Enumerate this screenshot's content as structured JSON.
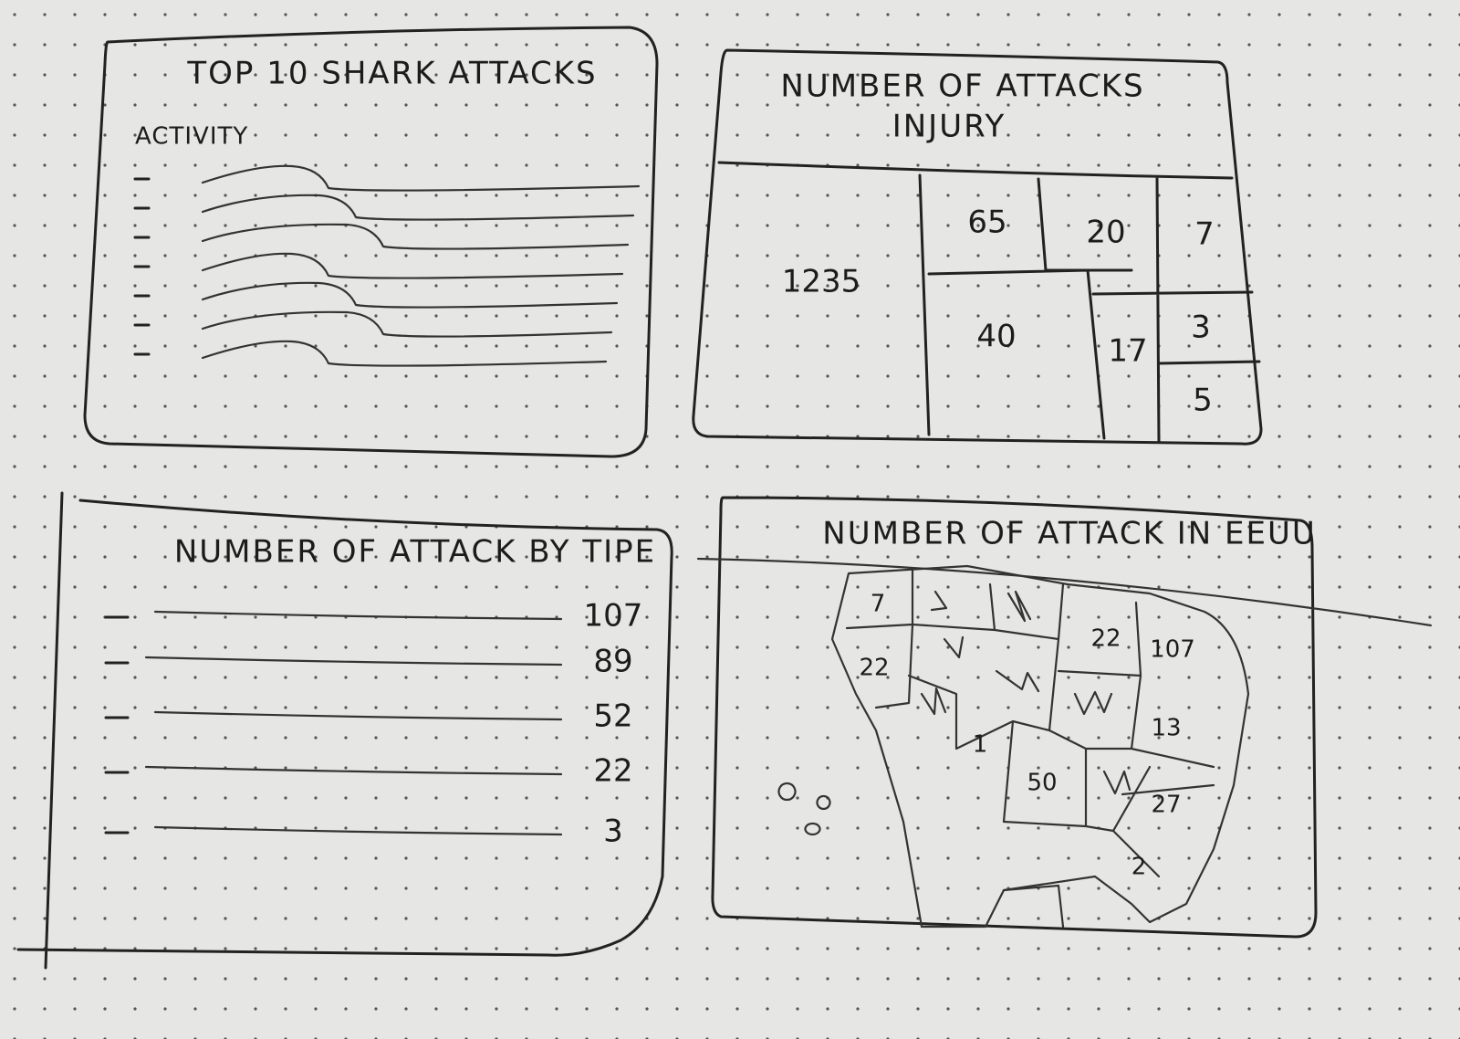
{
  "panels": [
    {
      "title": "TOP 10 SHARK ATTACKS",
      "axis_label": "ACTIVITY"
    },
    {
      "title": [
        "NUMBER OF ATTACKS",
        "INJURY"
      ],
      "cells": [
        1235,
        65,
        20,
        7,
        40,
        17,
        3,
        5
      ]
    },
    {
      "title": "NUMBER OF ATTACK BY TIPE",
      "values": [
        107,
        89,
        52,
        22,
        3
      ]
    },
    {
      "title": "NUMBER OF ATTACK IN EEUU",
      "regions": [
        7,
        22,
        22,
        107,
        13,
        1,
        50,
        27,
        2
      ]
    }
  ]
}
